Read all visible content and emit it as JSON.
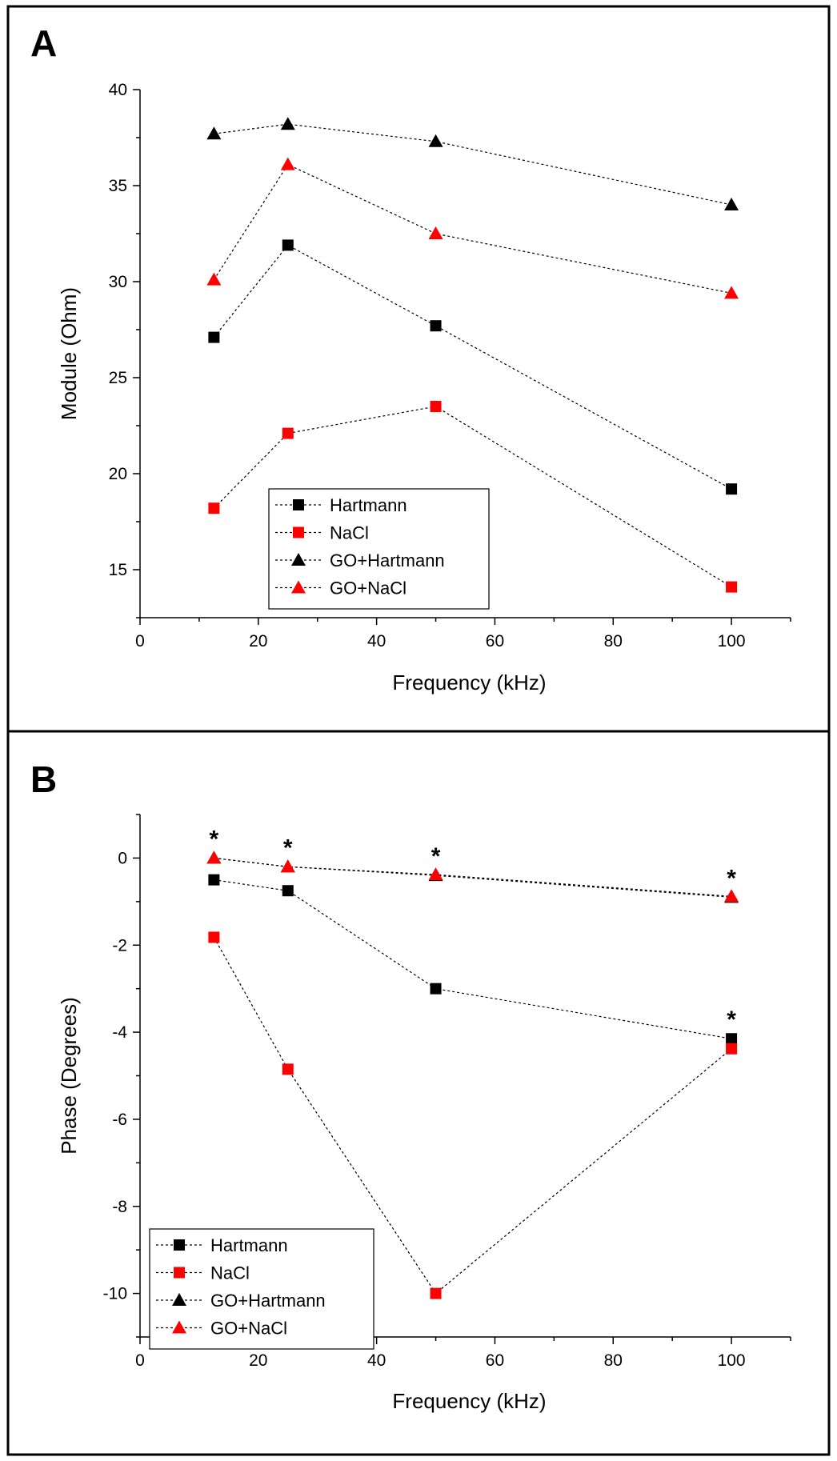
{
  "chart_data": [
    {
      "type": "line",
      "panel_label": "A",
      "title": "",
      "xlabel": "Frequency (kHz)",
      "ylabel": "Module (Ohm)",
      "xlim": [
        0,
        110
      ],
      "ylim": [
        12.5,
        40
      ],
      "xticks": [
        0,
        20,
        40,
        60,
        80,
        100
      ],
      "yticks": [
        15,
        20,
        25,
        30,
        35,
        40
      ],
      "x": [
        12.5,
        25,
        50,
        100
      ],
      "series": [
        {
          "name": "Hartmann",
          "marker": "square",
          "color": "#000000",
          "values": [
            27.1,
            31.9,
            27.7,
            19.2
          ]
        },
        {
          "name": "NaCl",
          "marker": "square",
          "color": "#ff0000",
          "values": [
            18.2,
            22.1,
            23.5,
            14.1
          ]
        },
        {
          "name": "GO+Hartmann",
          "marker": "triangle",
          "color": "#000000",
          "values": [
            37.7,
            38.2,
            37.3,
            34.0
          ]
        },
        {
          "name": "GO+NaCl",
          "marker": "triangle",
          "color": "#ff0000",
          "values": [
            30.1,
            36.1,
            32.5,
            29.4
          ]
        }
      ],
      "legend_position": "bottom-center",
      "annotations": []
    },
    {
      "type": "line",
      "panel_label": "B",
      "title": "",
      "xlabel": "Frequency (kHz)",
      "ylabel": "Phase (Degrees)",
      "xlim": [
        0,
        110
      ],
      "ylim": [
        -11,
        1
      ],
      "xticks": [
        0,
        20,
        40,
        60,
        80,
        100
      ],
      "yticks": [
        0,
        -2,
        -4,
        -6,
        -8,
        -10
      ],
      "x": [
        12.5,
        25,
        50,
        100
      ],
      "series": [
        {
          "name": "Hartmann",
          "marker": "square",
          "color": "#000000",
          "values": [
            -0.5,
            -0.75,
            -3.0,
            -4.15
          ]
        },
        {
          "name": "NaCl",
          "marker": "square",
          "color": "#ff0000",
          "values": [
            -1.82,
            -4.85,
            -10.0,
            -4.38
          ]
        },
        {
          "name": "GO+Hartmann",
          "marker": "triangle",
          "color": "#000000",
          "values": [
            0.0,
            -0.2,
            -0.4,
            -0.9
          ]
        },
        {
          "name": "GO+NaCl",
          "marker": "triangle",
          "color": "#ff0000",
          "values": [
            0.0,
            -0.2,
            -0.38,
            -0.88
          ]
        }
      ],
      "legend_position": "bottom-left",
      "annotations": [
        {
          "text": "*",
          "x": 12.5,
          "y": 0.0
        },
        {
          "text": "*",
          "x": 25,
          "y": -0.2
        },
        {
          "text": "*",
          "x": 50,
          "y": -0.4
        },
        {
          "text": "*",
          "x": 100,
          "y": -0.9
        },
        {
          "text": "*",
          "x": 100,
          "y": -4.15
        }
      ]
    }
  ]
}
